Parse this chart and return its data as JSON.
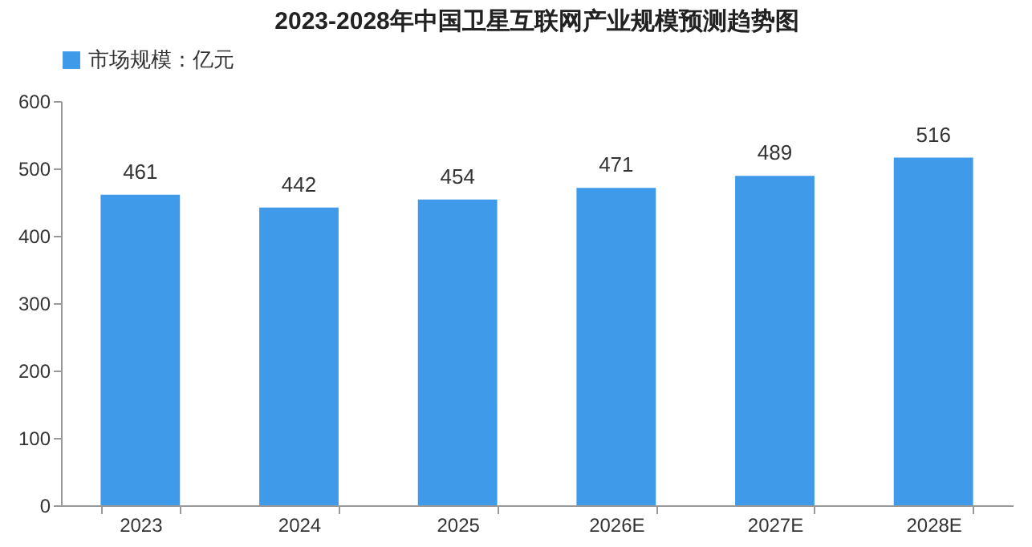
{
  "chart_data": {
    "type": "bar",
    "title": "2023-2028年中国卫星互联网产业规模预测趋势图",
    "categories": [
      "2023",
      "2024",
      "2025",
      "2026E",
      "2027E",
      "2028E"
    ],
    "series": [
      {
        "name": "市场规模：亿元",
        "color": "#3f9bea",
        "values": [
          461,
          442,
          454,
          471,
          489,
          516
        ]
      }
    ],
    "ylim": [
      0,
      600
    ],
    "yticks": [
      0,
      100,
      200,
      300,
      400,
      500,
      600
    ],
    "grid": false,
    "legend": "top",
    "data_labels": true
  }
}
